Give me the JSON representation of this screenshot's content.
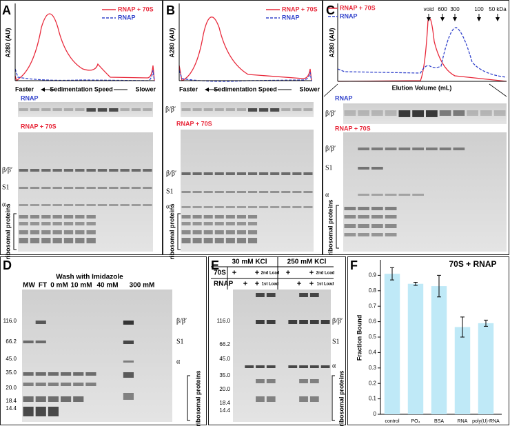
{
  "panels": {
    "A": {
      "label": "A",
      "y_label": "A280 (AU)",
      "legend": [
        "RNAP + 70S",
        "RNAP"
      ],
      "axis": [
        "Faster",
        "Sedimentation Speed",
        "Slower"
      ],
      "gel_top_title": "RNAP",
      "gel_bottom_title": "RNAP + 70S",
      "gel_bottom_markers": [
        "β/β′",
        "S1",
        "α",
        "ribosomal proteins"
      ]
    },
    "B": {
      "label": "B",
      "y_label": "A280 (AU)",
      "legend": [
        "RNAP + 70S",
        "RNAP"
      ],
      "axis": [
        "Faster",
        "Sedimentation Speed",
        "Slower"
      ],
      "gel_top_marker": "β/β′",
      "gel_bottom_title": "RNAP + 70S",
      "gel_bottom_markers": [
        "β/β′",
        "S1",
        "α",
        "ribosomal proteins"
      ]
    },
    "C": {
      "label": "C",
      "y_label": "A280 (AU)",
      "legend": [
        "RNAP + 70S",
        "RNAP"
      ],
      "size_markers": [
        "void",
        "600",
        "300",
        "100",
        "50 kDa"
      ],
      "x_label": "Elution Volume (mL)",
      "gel_top_title": "RNAP",
      "gel_top_marker": "β/β′",
      "gel_bottom_title": "RNAP + 70S",
      "gel_bottom_markers": [
        "β/β′",
        "S1",
        "α",
        "ribosomal proteins"
      ]
    },
    "D": {
      "label": "D",
      "title": "Wash with Imidazole",
      "lanes": [
        "MW",
        "FT",
        "0 mM",
        "10 mM",
        "40 mM",
        "300 mM"
      ],
      "mw": [
        "116.0",
        "66.2",
        "45.0",
        "35.0",
        "20.0",
        "18.4",
        "14.4"
      ],
      "markers": [
        "β/β′",
        "S1",
        "α",
        "ribosomal proteins"
      ]
    },
    "E": {
      "label": "E",
      "headers": [
        "30 mM KCl",
        "250 mM KCl"
      ],
      "rows": [
        [
          "70S",
          "+",
          null,
          "+",
          "2nd Load",
          "+",
          null,
          "+",
          "2nd Load"
        ],
        [
          "RNAP",
          null,
          "+",
          "+",
          "1st Load",
          null,
          "+",
          "+",
          "1st Load"
        ]
      ],
      "mw": [
        "116.0",
        "66.2",
        "45.0",
        "35.0",
        "20.0",
        "18.4",
        "14.4"
      ],
      "markers": [
        "β/β′",
        "S1",
        "α",
        "ribosomal proteins"
      ]
    },
    "F": {
      "label": "F"
    }
  },
  "chart_data": {
    "type": "bar",
    "title": "70S + RNAP",
    "y_label": "Fraction Bound",
    "categories": [
      "control",
      "PO₄",
      "BSA",
      "RNA",
      "poly(U)-RNA"
    ],
    "values": [
      0.91,
      0.845,
      0.83,
      0.565,
      0.59
    ],
    "errors": [
      0.04,
      0.01,
      0.07,
      0.065,
      0.02
    ],
    "color": "#bfe9f7",
    "ylim": [
      0,
      1.0
    ],
    "yticks": [
      0,
      0.1,
      0.2,
      0.3,
      0.4,
      0.5,
      0.6,
      0.7,
      0.8,
      0.9
    ]
  }
}
